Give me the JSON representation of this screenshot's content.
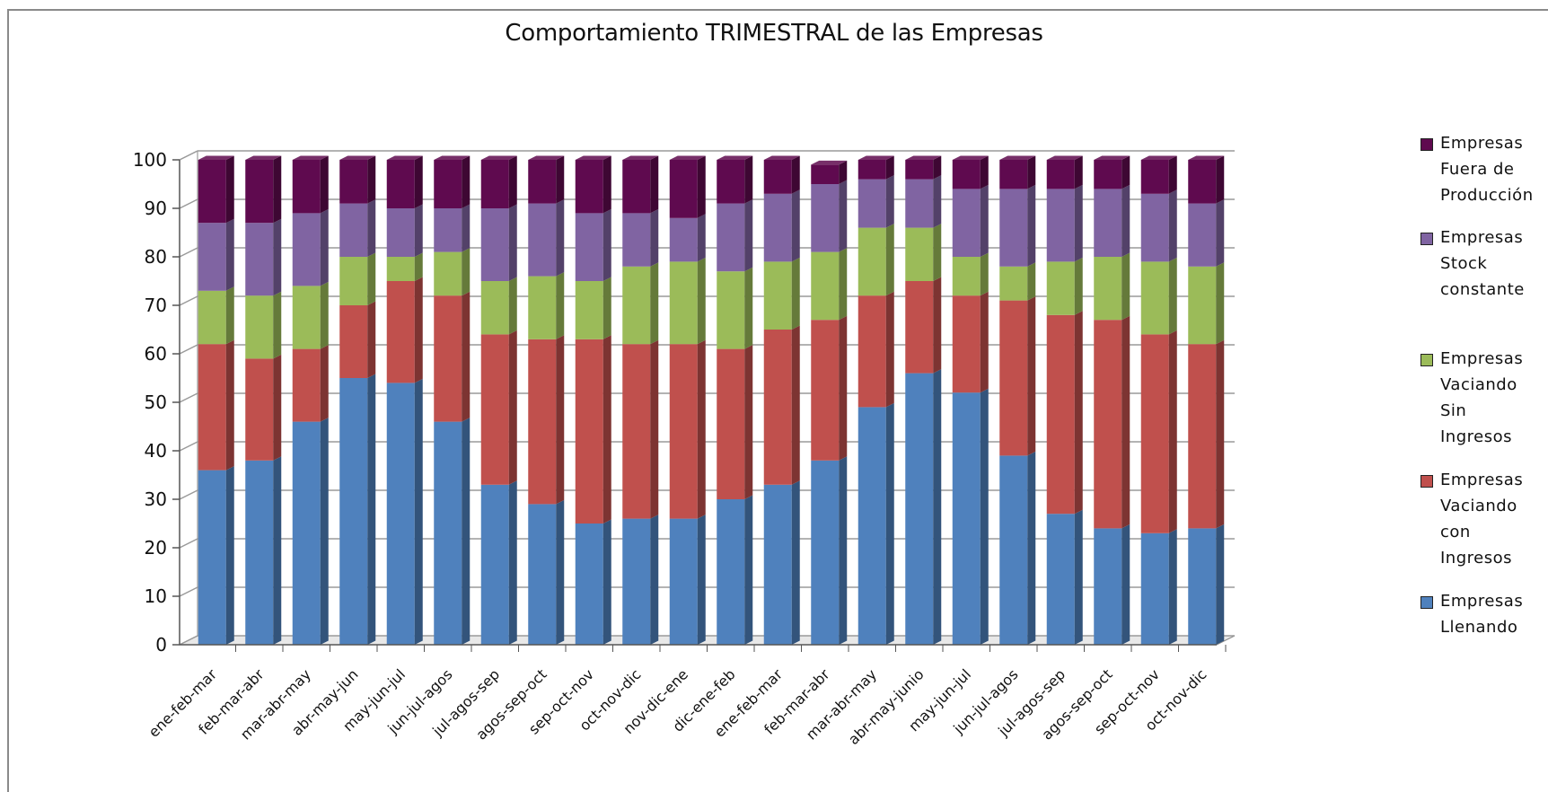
{
  "chart_data": {
    "type": "bar",
    "stacked": true,
    "three_d": true,
    "title": "Comportamiento TRIMESTRAL de las Empresas",
    "xlabel": "",
    "ylabel": "",
    "ylim": [
      0,
      100
    ],
    "yticks": [
      0,
      10,
      20,
      30,
      40,
      50,
      60,
      70,
      80,
      90,
      100
    ],
    "grid": true,
    "legend_position": "right",
    "categories": [
      "ene-feb-mar",
      "feb-mar-abr",
      "mar-abr-may",
      "abr-may-jun",
      "may-jun-jul",
      "jun-jul-agos",
      "jul-agos-sep",
      "agos-sep-oct",
      "sep-oct-nov",
      "oct-nov-dic",
      "nov-dic-ene",
      "dic-ene-feb",
      "ene-feb-mar",
      "feb-mar-abr",
      "mar-abr-may",
      "abr-may-junio",
      "may-jun-jul",
      "jun-jul-agos",
      "jul-agos-sep",
      "agos-sep-oct",
      "sep-oct-nov",
      "oct-nov-dic"
    ],
    "series": [
      {
        "name": "Empresas Llenando",
        "color": "#4f81bd",
        "values": [
          36,
          38,
          46,
          55,
          54,
          46,
          33,
          29,
          25,
          26,
          26,
          30,
          33,
          38,
          49,
          56,
          52,
          39,
          27,
          24,
          23,
          24
        ]
      },
      {
        "name": "Empresas Vaciando con Ingresos",
        "color": "#c0504d",
        "values": [
          26,
          21,
          15,
          15,
          21,
          26,
          31,
          34,
          38,
          36,
          36,
          31,
          32,
          29,
          23,
          19,
          20,
          32,
          41,
          43,
          41,
          38
        ]
      },
      {
        "name": "Empresas Vaciando Sin Ingresos",
        "color": "#9bbb59",
        "values": [
          11,
          13,
          13,
          10,
          5,
          9,
          11,
          13,
          12,
          16,
          17,
          16,
          14,
          14,
          14,
          11,
          8,
          7,
          11,
          13,
          15,
          16
        ]
      },
      {
        "name": "Empresas Stock constante",
        "color": "#8064a2",
        "values": [
          14,
          15,
          15,
          11,
          10,
          9,
          15,
          15,
          14,
          11,
          9,
          14,
          14,
          14,
          10,
          10,
          14,
          16,
          15,
          14,
          14,
          13
        ]
      },
      {
        "name": "Empresas Fuera de Producción",
        "color": "#5f0a4f",
        "values": [
          13,
          13,
          11,
          9,
          10,
          10,
          10,
          9,
          11,
          11,
          12,
          9,
          7,
          4,
          4,
          4,
          6,
          6,
          6,
          6,
          7,
          9
        ]
      }
    ]
  },
  "legend": {
    "items": [
      {
        "label": "Empresas\nFuera de\nProducción",
        "color": "#5f0a4f"
      },
      {
        "label": "Empresas\nStock\nconstante",
        "color": "#8064a2"
      },
      {
        "label": "Empresas\nVaciando\nSin\nIngresos",
        "color": "#9bbb59"
      },
      {
        "label": "Empresas\nVaciando\ncon\nIngresos",
        "color": "#c0504d"
      },
      {
        "label": "Empresas\nLlenando",
        "color": "#4f81bd"
      }
    ]
  }
}
